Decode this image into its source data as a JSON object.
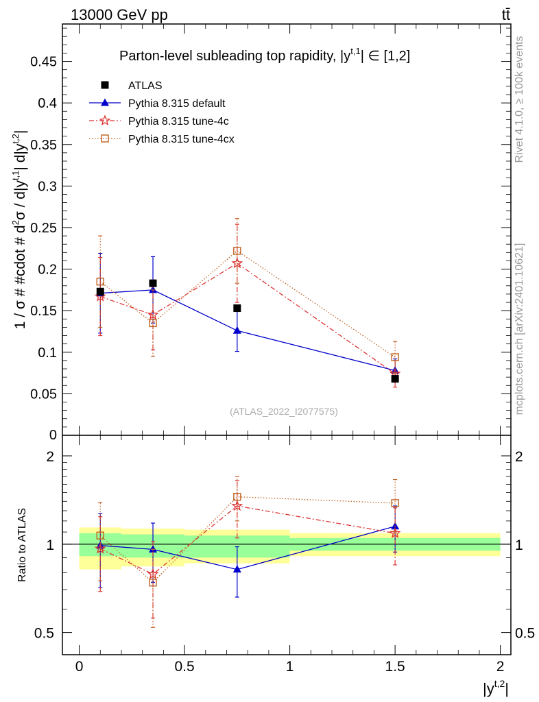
{
  "header": {
    "energy_label": "13000 GeV pp",
    "process_label": "tt̄"
  },
  "side_labels": {
    "rivet": "Rivet 4.1.0, ≥ 100k events",
    "mcplots": "mcplots.cern.ch [arXiv:2401.10621]"
  },
  "colors": {
    "atlas": "#000000",
    "default": "#0000cc",
    "tune4c": "#dd3333",
    "tune4cx": "#c06020",
    "band_inner": "#99ff99",
    "band_outer": "#ffff99"
  },
  "chart_data": [
    {
      "type": "scatter",
      "title": "Parton-level subleading top rapidity, |y^t,1| ∈ [1,2]",
      "ylabel": "1 / σ # #cdot # d²σ / d|y^t,1| d|y^t,2|",
      "xlim": [
        -0.08,
        2.05
      ],
      "ylim": [
        0,
        0.495
      ],
      "yticks": [
        0.05,
        0.1,
        0.15,
        0.2,
        0.25,
        0.3,
        0.35,
        0.4,
        0.45
      ],
      "ytick_labels": [
        "0.05",
        "0.1",
        "0.15",
        "0.2",
        "0.25",
        "0.3",
        "0.35",
        "0.4",
        "0.45"
      ],
      "zero_label": "0",
      "watermark": "(ATLAS_2022_I2077575)",
      "legend_position": "top-left",
      "bins": [
        [
          0,
          0.2
        ],
        [
          0.2,
          0.5
        ],
        [
          0.5,
          1.0
        ],
        [
          1.0,
          2.0
        ]
      ],
      "x": [
        0.1,
        0.35,
        0.75,
        1.5
      ],
      "series": [
        {
          "name": "ATLAS",
          "key": "atlas",
          "marker": "square",
          "values": [
            0.173,
            0.183,
            0.153,
            0.068
          ],
          "err_lo": [
            0.173,
            0.183,
            0.153,
            0.068
          ],
          "err_hi": [
            0.173,
            0.183,
            0.153,
            0.068
          ]
        },
        {
          "name": "Pythia 8.315 default",
          "key": "default",
          "marker": "triangle",
          "line": "solid",
          "values": [
            0.171,
            0.175,
            0.126,
            0.078
          ],
          "err_lo": [
            0.123,
            0.135,
            0.101,
            0.064
          ],
          "err_hi": [
            0.219,
            0.215,
            0.151,
            0.092
          ]
        },
        {
          "name": "Pythia 8.315 tune-4c",
          "key": "tune4c",
          "marker": "star",
          "line": "dashdot",
          "values": [
            0.167,
            0.145,
            0.207,
            0.074
          ],
          "err_lo": [
            0.12,
            0.103,
            0.16,
            0.058
          ],
          "err_hi": [
            0.214,
            0.187,
            0.254,
            0.09
          ]
        },
        {
          "name": "Pythia 8.315 tune-4cx",
          "key": "tune4cx",
          "marker": "open-square",
          "line": "dotted",
          "values": [
            0.185,
            0.135,
            0.222,
            0.094
          ],
          "err_lo": [
            0.13,
            0.095,
            0.183,
            0.075
          ],
          "err_hi": [
            0.24,
            0.175,
            0.261,
            0.113
          ]
        }
      ]
    },
    {
      "type": "scatter",
      "ylabel": "Ratio to ATLAS",
      "xlabel": "|y^t,2|",
      "scale": "log",
      "ylim": [
        0.42,
        2.35
      ],
      "yticks": [
        0.5,
        1,
        2
      ],
      "ytick_labels": [
        "0.5",
        "1",
        "2"
      ],
      "xticks": [
        0,
        0.5,
        1,
        1.5,
        2
      ],
      "xtick_labels": [
        "0",
        "0.5",
        "1",
        "1.5",
        "2"
      ],
      "band": {
        "bins": [
          [
            0,
            0.2
          ],
          [
            0.2,
            0.5
          ],
          [
            0.5,
            1.0
          ],
          [
            1.0,
            2.0
          ]
        ],
        "inner": [
          [
            0.91,
            1.09
          ],
          [
            0.9,
            1.08
          ],
          [
            0.9,
            1.07
          ],
          [
            0.95,
            1.05
          ]
        ],
        "outer": [
          [
            0.82,
            1.14
          ],
          [
            0.84,
            1.13
          ],
          [
            0.86,
            1.12
          ],
          [
            0.91,
            1.09
          ]
        ]
      },
      "x": [
        0.1,
        0.35,
        0.75,
        1.5
      ],
      "series": [
        {
          "name": "Pythia 8.315 default",
          "key": "default",
          "marker": "triangle",
          "line": "solid",
          "values": [
            0.99,
            0.96,
            0.82,
            1.15
          ],
          "err_lo": [
            0.71,
            0.74,
            0.66,
            0.94
          ],
          "err_hi": [
            1.27,
            1.18,
            0.98,
            1.35
          ]
        },
        {
          "name": "Pythia 8.315 tune-4c",
          "key": "tune4c",
          "marker": "star",
          "line": "dashdot",
          "values": [
            0.965,
            0.79,
            1.35,
            1.09
          ],
          "err_lo": [
            0.69,
            0.56,
            1.05,
            0.85
          ],
          "err_hi": [
            1.24,
            1.02,
            1.65,
            1.33
          ]
        },
        {
          "name": "Pythia 8.315 tune-4cx",
          "key": "tune4cx",
          "marker": "open-square",
          "line": "dotted",
          "values": [
            1.07,
            0.74,
            1.45,
            1.38
          ],
          "err_lo": [
            0.75,
            0.52,
            1.2,
            1.1
          ],
          "err_hi": [
            1.39,
            0.96,
            1.7,
            1.66
          ]
        }
      ]
    }
  ]
}
